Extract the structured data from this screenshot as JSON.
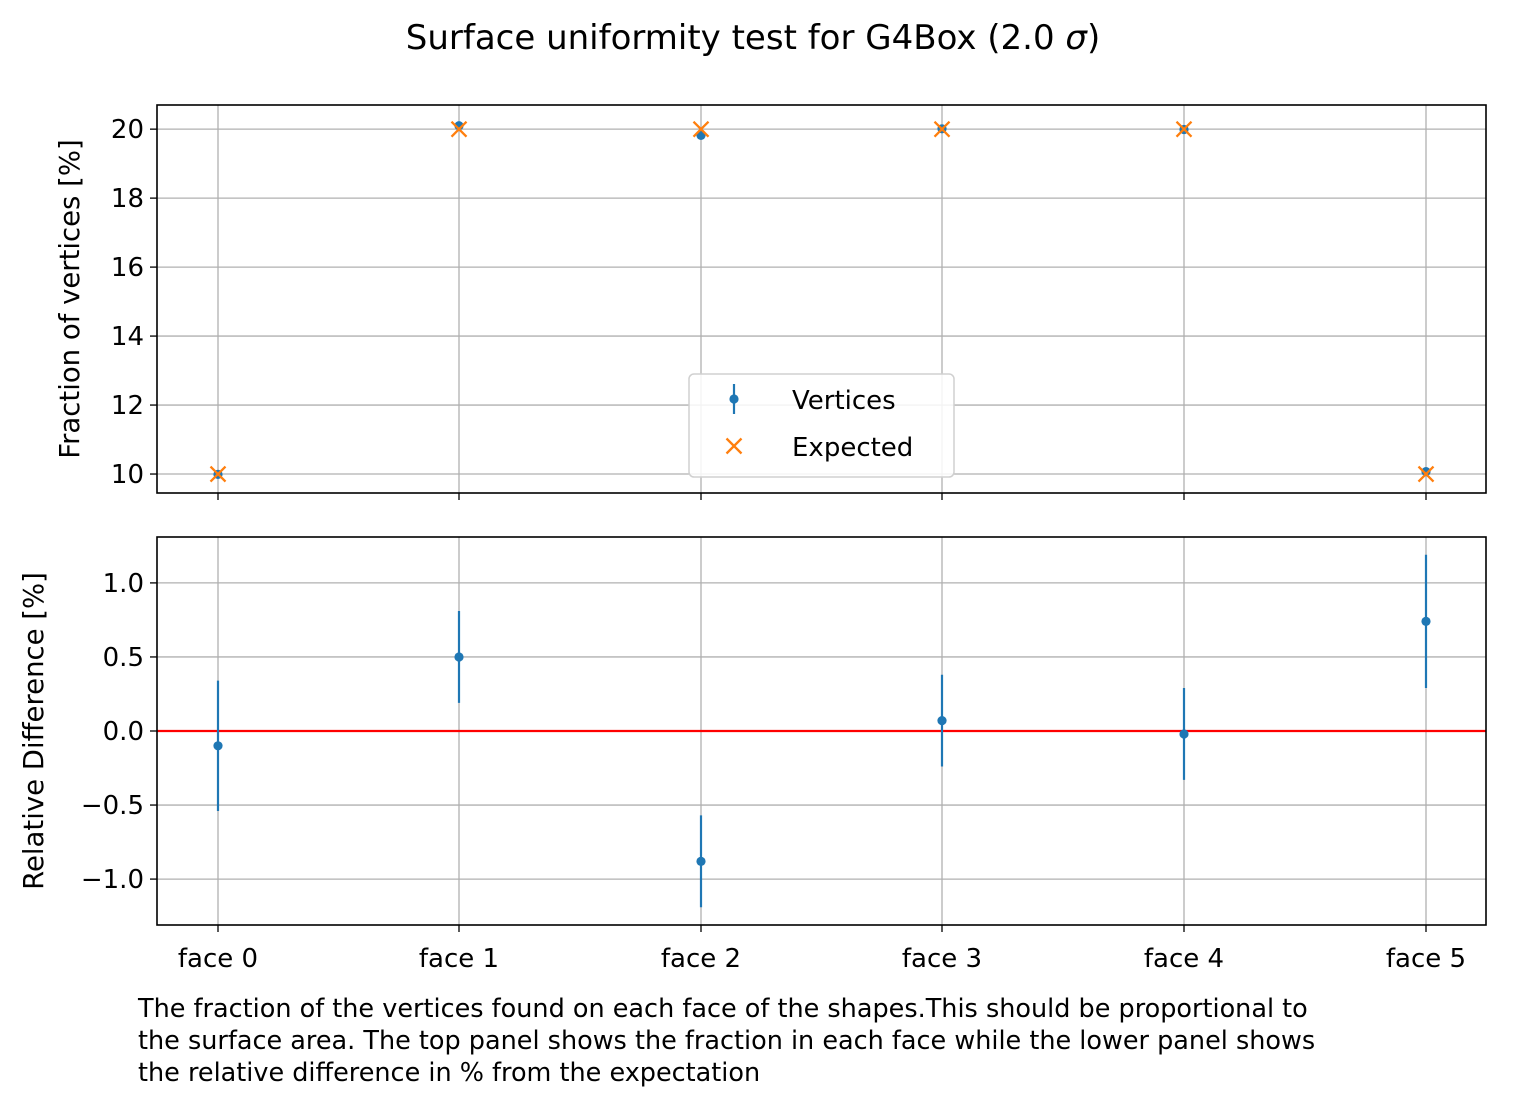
{
  "figure": {
    "title_text": "Surface uniformity test for G4Box (2.0 ",
    "title_sigma": "σ",
    "title_close": ")"
  },
  "caption": {
    "lines": [
      "The fraction of the vertices found on each face of the shapes.This should be proportional to",
      "the surface area. The top panel shows the fraction in each face while the lower panel shows",
      "the relative difference in % from the expectation"
    ]
  },
  "colors": {
    "vertices": "#1f77b4",
    "expected": "#ff7f0e",
    "zero_line": "#ff0000",
    "grid": "#b0b0b0"
  },
  "chart_data": [
    {
      "type": "scatter",
      "ylabel": "Fraction of vertices [%]",
      "categories": [
        "face 0",
        "face 1",
        "face 2",
        "face 3",
        "face 4",
        "face 5"
      ],
      "series": [
        {
          "name": "Vertices",
          "values": [
            9.99,
            20.1,
            19.82,
            20.01,
            19.99,
            10.07
          ],
          "errors": [
            0.04,
            0.06,
            0.06,
            0.06,
            0.06,
            0.04
          ]
        },
        {
          "name": "Expected",
          "values": [
            10,
            20,
            20,
            20,
            20,
            10
          ]
        }
      ],
      "yticks": [
        10,
        12,
        14,
        16,
        18,
        20
      ],
      "ylim": [
        9.45,
        20.7
      ],
      "grid": true,
      "legend": "lower center"
    },
    {
      "type": "scatter",
      "ylabel": "Relative Difference [%]",
      "categories": [
        "face 0",
        "face 1",
        "face 2",
        "face 3",
        "face 4",
        "face 5"
      ],
      "series": [
        {
          "name": "Vertices",
          "values": [
            -0.1,
            0.5,
            -0.88,
            0.07,
            -0.02,
            0.74
          ],
          "errors": [
            0.44,
            0.31,
            0.31,
            0.31,
            0.31,
            0.45
          ]
        }
      ],
      "reference_line": 0,
      "yticks": [
        -1.0,
        -0.5,
        0.0,
        0.5,
        1.0
      ],
      "yticklabels": [
        "−1.0",
        "−0.5",
        "0.0",
        "0.5",
        "1.0"
      ],
      "ylim": [
        -1.31,
        1.31
      ],
      "grid": true
    }
  ]
}
